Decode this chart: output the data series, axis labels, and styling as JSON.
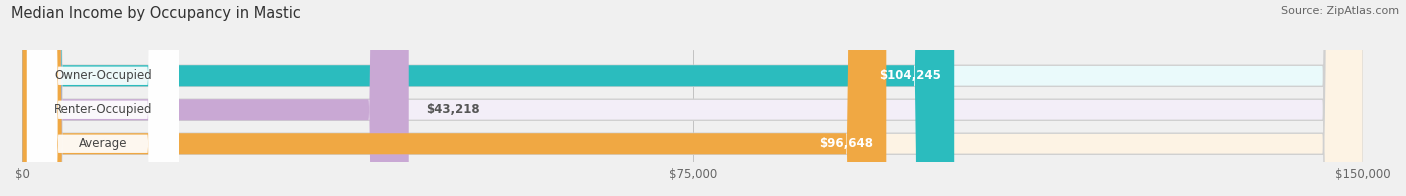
{
  "title": "Median Income by Occupancy in Mastic",
  "source": "Source: ZipAtlas.com",
  "categories": [
    "Owner-Occupied",
    "Renter-Occupied",
    "Average"
  ],
  "values": [
    104245,
    43218,
    96648
  ],
  "labels": [
    "$104,245",
    "$43,218",
    "$96,648"
  ],
  "bar_colors": [
    "#2bbcbe",
    "#c9a8d4",
    "#f0a843"
  ],
  "bar_bg_colors": [
    "#eafafb",
    "#f3eef8",
    "#fdf3e4"
  ],
  "xlim": [
    0,
    150000
  ],
  "xticks": [
    0,
    75000,
    150000
  ],
  "xtick_labels": [
    "$0",
    "$75,000",
    "$150,000"
  ],
  "title_fontsize": 10.5,
  "source_fontsize": 8,
  "label_fontsize": 8.5,
  "category_fontsize": 8.5,
  "tick_fontsize": 8.5,
  "background_color": "#f0f0f0"
}
